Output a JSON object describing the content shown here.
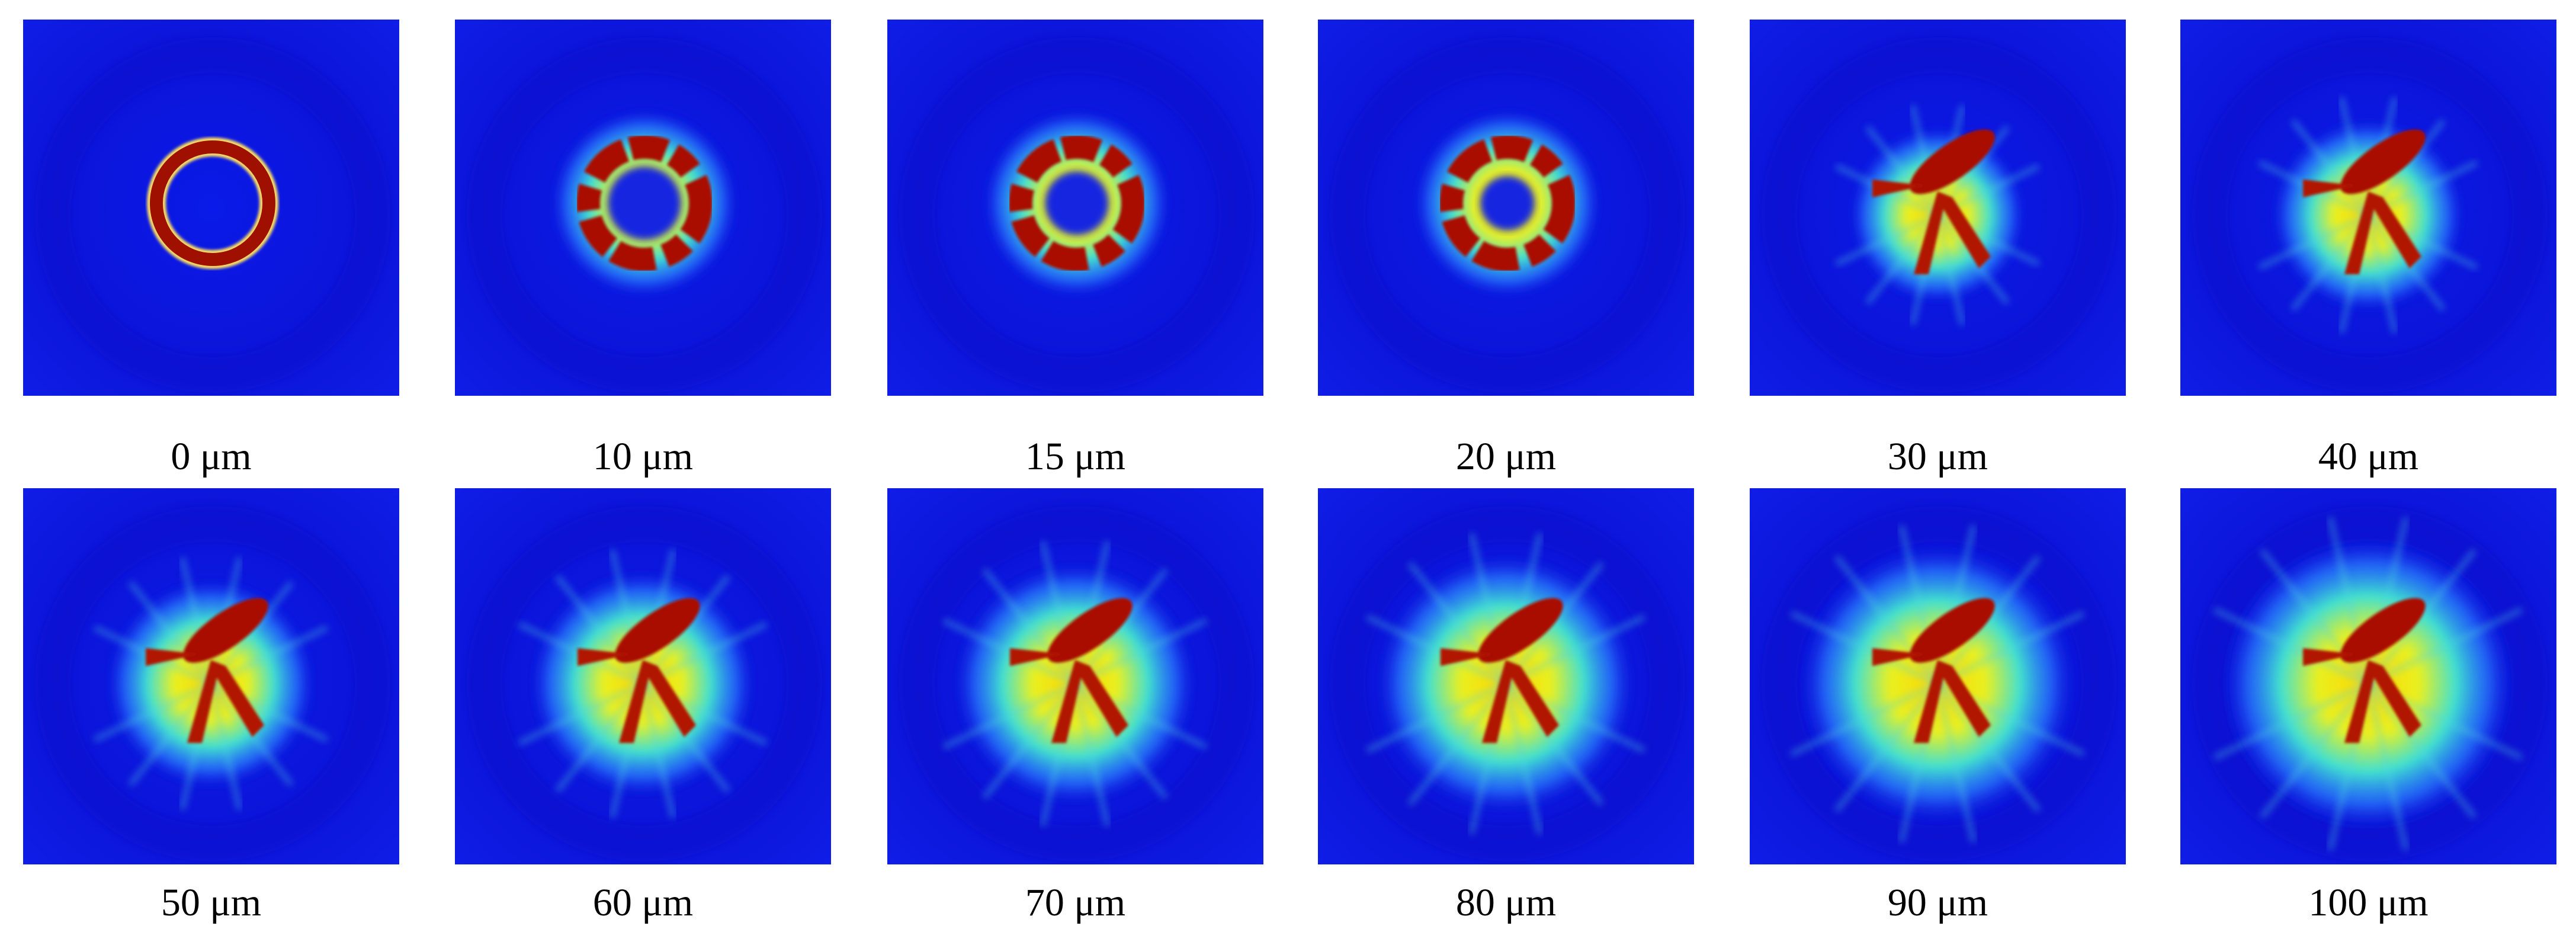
{
  "panels": [
    {
      "label": "0 μm"
    },
    {
      "label": "10 μm"
    },
    {
      "label": "15 μm"
    },
    {
      "label": "20 μm"
    },
    {
      "label": "30 μm"
    },
    {
      "label": "40 μm"
    },
    {
      "label": "50 μm"
    },
    {
      "label": "60 μm"
    },
    {
      "label": "70 μm"
    },
    {
      "label": "80 μm"
    },
    {
      "label": "90 μm"
    },
    {
      "label": "100 μm"
    }
  ]
}
